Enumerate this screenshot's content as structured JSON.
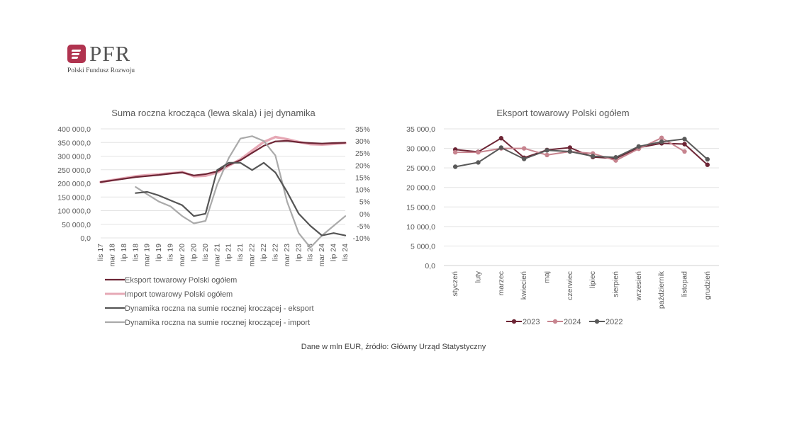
{
  "logo": {
    "name": "PFR",
    "subtitle": "Polski Fundusz Rozwoju"
  },
  "source_note": "Dane w mln EUR, źródło: Główny Urząd Statystyczny",
  "chart_data": [
    {
      "type": "line",
      "title": "Suma roczna krocząca (lewa skala) i jej dynamika",
      "x_tick_labels": [
        "lis 17",
        "mar 18",
        "lip 18",
        "lis 18",
        "mar 19",
        "lip 19",
        "lis 19",
        "mar 20",
        "lip 20",
        "lis 20",
        "mar 21",
        "lip 21",
        "lis 21",
        "mar 22",
        "lip 22",
        "lis 22",
        "mar 23",
        "lip 23",
        "lis 23",
        "mar 24",
        "lip 24",
        "lis 24"
      ],
      "y_left": {
        "ticks": [
          "0,0",
          "50 000,0",
          "100 000,0",
          "150 000,0",
          "200 000,0",
          "250 000,0",
          "300 000,0",
          "350 000,0",
          "400 000,0"
        ],
        "range": [
          0,
          400000
        ]
      },
      "y_right": {
        "ticks": [
          "-10%",
          "-5%",
          "0%",
          "5%",
          "10%",
          "15%",
          "20%",
          "25%",
          "30%",
          "35%"
        ],
        "range": [
          -10,
          35
        ]
      },
      "series": [
        {
          "name": "Eksport towarowy Polski ogółem",
          "axis": "left",
          "color": "#6d2535",
          "width": 2.2,
          "values": [
            205000,
            211000,
            217000,
            223000,
            227000,
            231000,
            236000,
            240000,
            229000,
            234000,
            244000,
            268000,
            285000,
            312000,
            338000,
            354000,
            356000,
            351000,
            348000,
            346000,
            348000,
            349000
          ]
        },
        {
          "name": "Import towarowy Polski ogółem",
          "axis": "left",
          "color": "#e6a8b5",
          "width": 3.5,
          "values": [
            205000,
            212000,
            219000,
            226000,
            230000,
            233000,
            237000,
            242000,
            226000,
            228000,
            240000,
            265000,
            288000,
            320000,
            352000,
            370000,
            362000,
            352000,
            344000,
            342000,
            345000,
            348000
          ]
        },
        {
          "name": "Dynamika roczna na sumie rocznej kroczącej - eksport",
          "axis": "right",
          "color": "#555555",
          "width": 2.2,
          "values": [
            null,
            null,
            null,
            8.5,
            9,
            7.5,
            5.5,
            3.5,
            -1,
            0,
            18,
            21,
            21,
            18,
            21,
            17,
            9,
            0,
            -5,
            -9,
            -8,
            -9
          ]
        },
        {
          "name": "Dynamika roczna na sumie rocznej kroczącej - import",
          "axis": "right",
          "color": "#aaaaaa",
          "width": 2.2,
          "values": [
            null,
            null,
            null,
            11,
            8,
            5,
            3,
            -1,
            -4,
            -3,
            12,
            23,
            31,
            32,
            30,
            24,
            5,
            -8,
            -14,
            -9,
            -5,
            -1
          ]
        }
      ],
      "legend_position": "bottom",
      "grid": "horizontal"
    },
    {
      "type": "line",
      "title": "Eksport towarowy Polski ogółem",
      "categories": [
        "styczeń",
        "luty",
        "marzec",
        "kwiecień",
        "maj",
        "czerwiec",
        "lipiec",
        "sierpień",
        "wrzesień",
        "październik",
        "listopad",
        "grudzień"
      ],
      "y": {
        "ticks": [
          "0,0",
          "5 000,0",
          "10 000,0",
          "15 000,0",
          "20 000,0",
          "25 000,0",
          "30 000,0",
          "35 000,0"
        ],
        "range": [
          0,
          35000
        ]
      },
      "series": [
        {
          "name": "2023",
          "color": "#6d2535",
          "values": [
            29700,
            29100,
            32600,
            27600,
            29600,
            30200,
            27800,
            27400,
            30200,
            31300,
            31100,
            25800
          ]
        },
        {
          "name": "2024",
          "color": "#c7848f",
          "values": [
            29000,
            29000,
            30000,
            30000,
            28300,
            29200,
            28700,
            26900,
            29900,
            32700,
            29200,
            null
          ]
        },
        {
          "name": "2022",
          "color": "#595959",
          "values": [
            25300,
            26400,
            30200,
            27300,
            29500,
            29200,
            28000,
            27700,
            30500,
            31700,
            32400,
            27200
          ]
        }
      ],
      "legend_position": "bottom",
      "grid": "horizontal"
    }
  ]
}
